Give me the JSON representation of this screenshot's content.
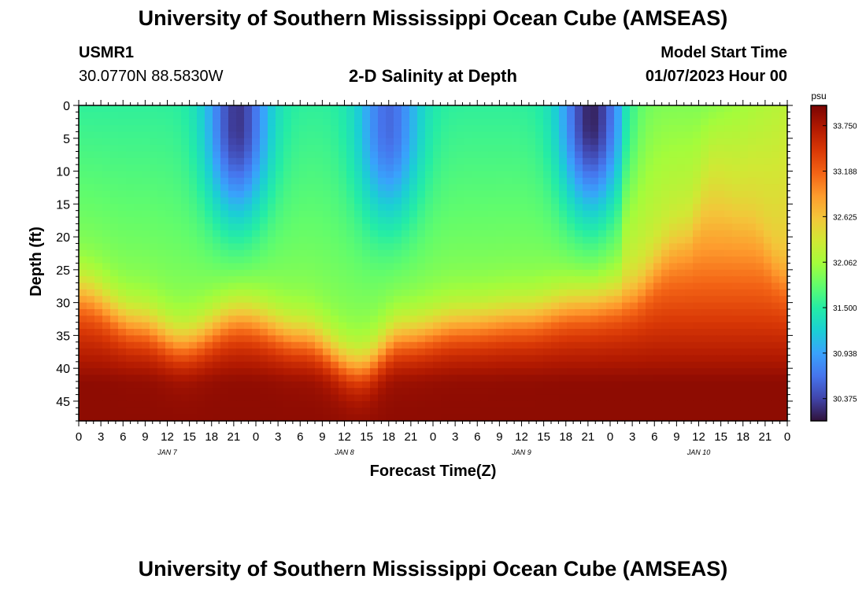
{
  "header": {
    "title": "University of Southern Mississippi Ocean Cube (AMSEAS)",
    "station": "USMR1",
    "coords": "30.0770N  88.5830W",
    "plot_title": "2-D Salinity at Depth",
    "start_label": "Model Start Time",
    "start_value": "01/07/2023 Hour 00"
  },
  "footer": {
    "title": "University of Southern Mississippi Ocean Cube (AMSEAS)"
  },
  "chart_data": {
    "type": "heatmap",
    "title": "2-D Salinity at Depth",
    "xlabel": "Forecast Time(Z)",
    "ylabel": "Depth (ft)",
    "ylim": [
      0,
      48
    ],
    "y_ticks": [
      0,
      5,
      10,
      15,
      20,
      25,
      30,
      35,
      40,
      45
    ],
    "x_range_hours": [
      0,
      96
    ],
    "x_tick_labels": [
      "0",
      "3",
      "6",
      "9",
      "12",
      "15",
      "18",
      "21",
      "0",
      "3",
      "6",
      "9",
      "12",
      "15",
      "18",
      "21",
      "0",
      "3",
      "6",
      "9",
      "12",
      "15",
      "18",
      "21",
      "0",
      "3",
      "6",
      "9",
      "12",
      "15",
      "18",
      "21",
      "0"
    ],
    "day_labels": [
      {
        "hour": 12,
        "label": "JAN 7"
      },
      {
        "hour": 36,
        "label": "JAN 8"
      },
      {
        "hour": 60,
        "label": "JAN 9"
      },
      {
        "hour": 84,
        "label": "JAN 10"
      }
    ],
    "colorbar": {
      "unit": "psu",
      "min": 30.1,
      "max": 34.0,
      "ticks": [
        "33.750",
        "33.188",
        "32.625",
        "32.062",
        "31.500",
        "30.938",
        "30.375"
      ],
      "colormap": [
        "#30123b",
        "#4145ab",
        "#4675ed",
        "#39a2fc",
        "#1bcfd4",
        "#24eca6",
        "#61fc6c",
        "#a4fc3b",
        "#d1e834",
        "#f3c63a",
        "#fe9b2d",
        "#f36315",
        "#d93806",
        "#b11901",
        "#7a0403"
      ]
    },
    "halocline_depth_ft": [
      {
        "hour": 0,
        "depth": 28
      },
      {
        "hour": 8,
        "depth": 33
      },
      {
        "hour": 14,
        "depth": 36
      },
      {
        "hour": 22,
        "depth": 32
      },
      {
        "hour": 30,
        "depth": 35
      },
      {
        "hour": 38,
        "depth": 40
      },
      {
        "hour": 44,
        "depth": 35
      },
      {
        "hour": 52,
        "depth": 33
      },
      {
        "hour": 60,
        "depth": 32
      },
      {
        "hour": 68,
        "depth": 30
      },
      {
        "hour": 74,
        "depth": 29
      },
      {
        "hour": 82,
        "depth": 20
      },
      {
        "hour": 86,
        "depth": 11
      },
      {
        "hour": 90,
        "depth": 16
      },
      {
        "hour": 96,
        "depth": 26
      }
    ],
    "surface_freshwater_minima": [
      {
        "hour": 21.5,
        "depth": 3,
        "value": 30.3
      },
      {
        "hour": 42,
        "depth": 3,
        "value": 30.6
      },
      {
        "hour": 69.5,
        "depth": 2,
        "value": 30.2
      }
    ],
    "surface_max_value": 32.2,
    "bottom_max_value": 33.9
  }
}
